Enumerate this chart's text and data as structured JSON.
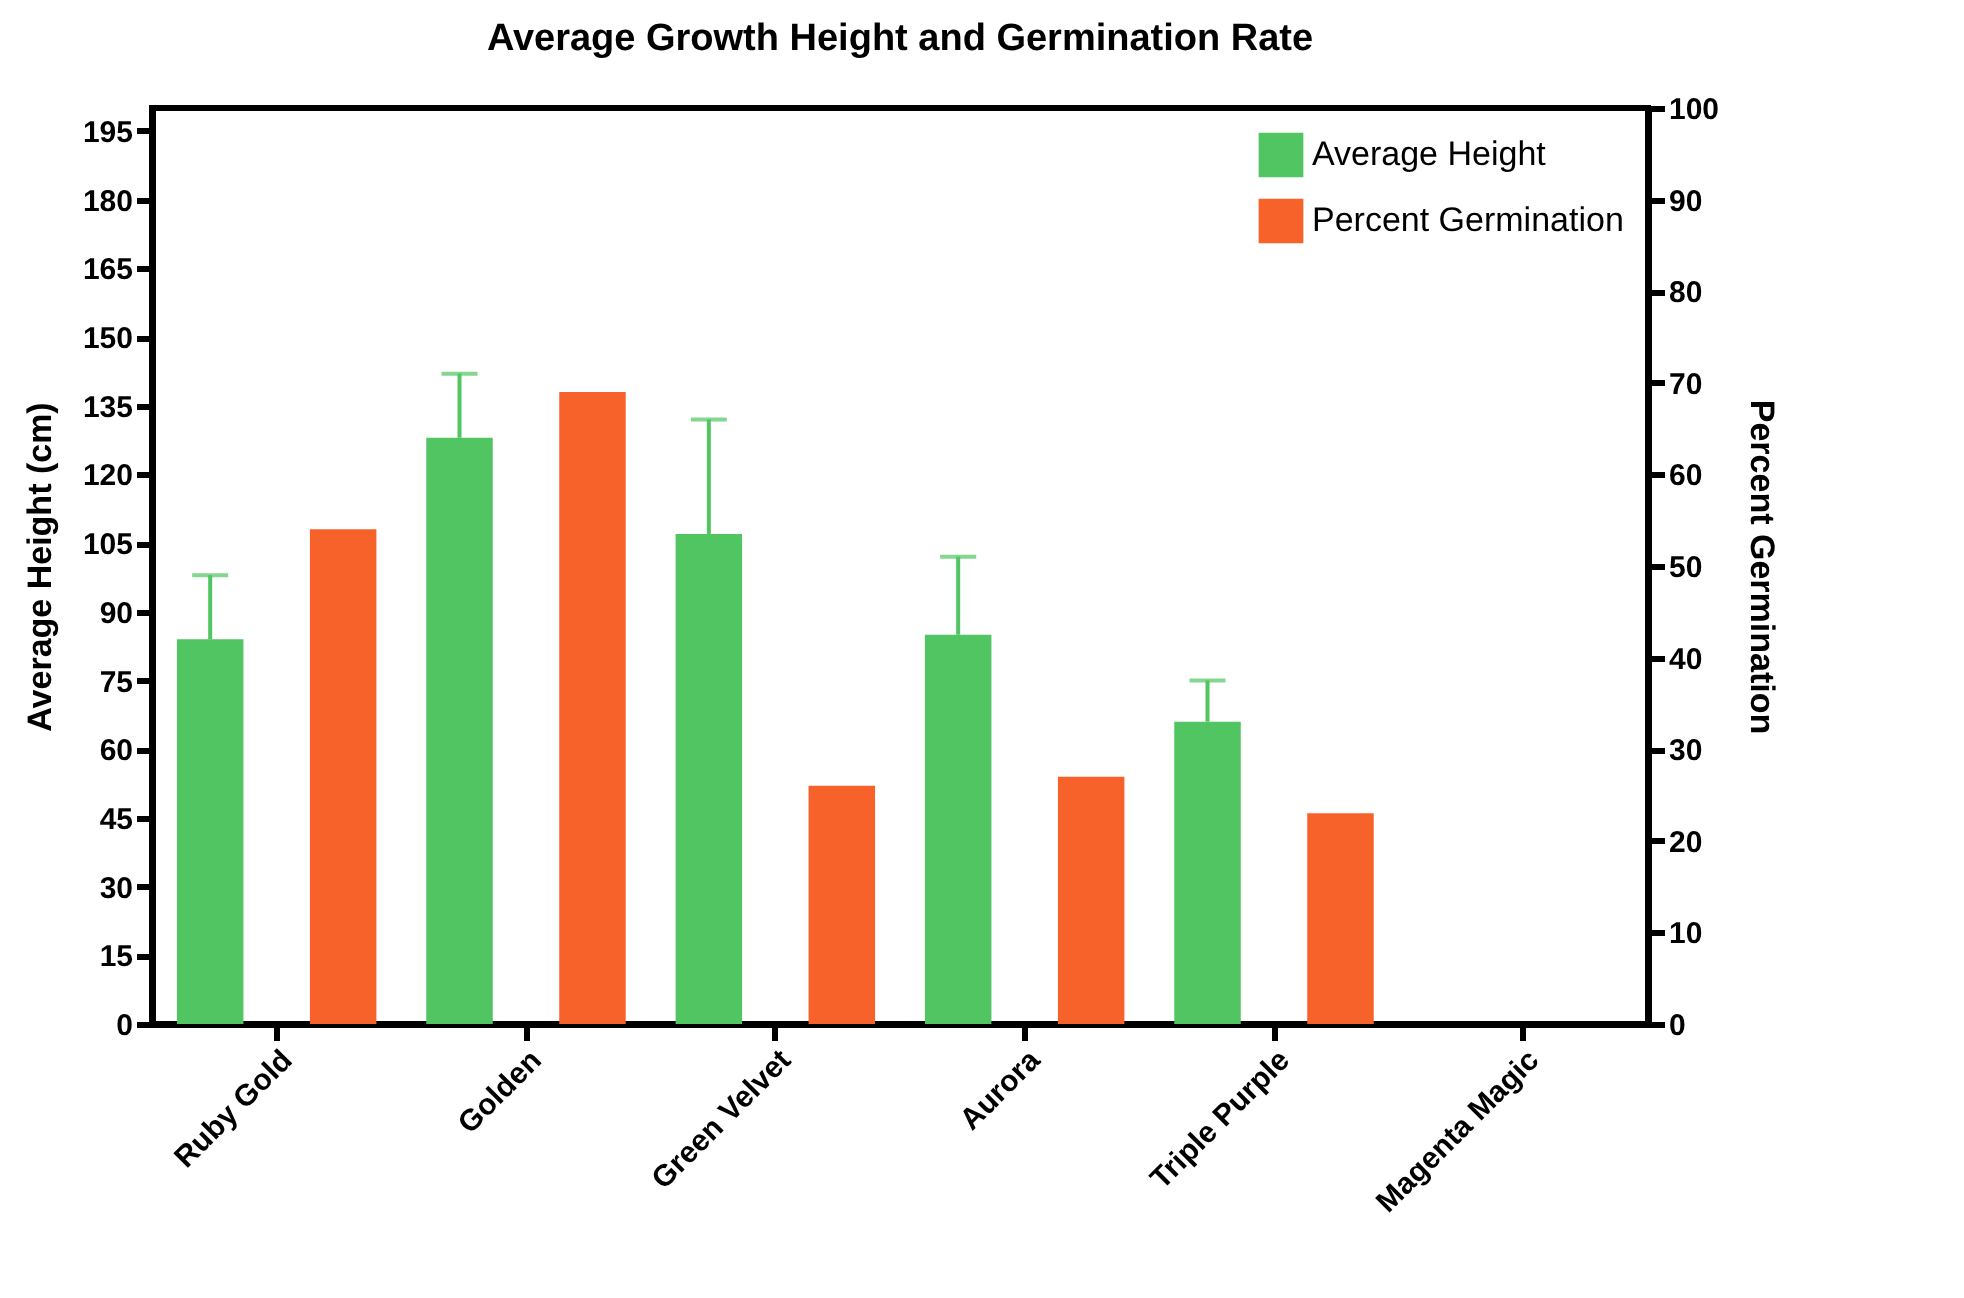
{
  "chart_data": {
    "type": "bar",
    "title": "Average Growth Height and Germination Rate",
    "ylabel": "Average Height (cm)",
    "y2label": "Percent Germination",
    "categories": [
      "Ruby Gold",
      "Golden",
      "Green Velvet",
      "Aurora",
      "Triple Purple",
      "Magenta Magic"
    ],
    "series": [
      {
        "name": "Average Height",
        "color": "#51c562",
        "values": [
          84,
          128,
          107,
          85,
          66,
          null
        ],
        "errors": [
          [
            84,
            98
          ],
          [
            128,
            142
          ],
          [
            107,
            132
          ],
          [
            85,
            102
          ],
          [
            66,
            75
          ],
          null
        ]
      },
      {
        "name": "Percent Germination",
        "color": "#f7622b",
        "axis": "y2",
        "values": [
          54,
          69,
          26,
          27,
          23,
          null
        ]
      }
    ],
    "ylim": [
      0,
      200
    ],
    "yticks": [
      0,
      15,
      30,
      45,
      60,
      75,
      90,
      105,
      120,
      135,
      150,
      165,
      180,
      195
    ],
    "y2lim": [
      0,
      100
    ],
    "y2ticks": [
      0,
      10,
      20,
      30,
      40,
      50,
      60,
      70,
      80,
      90,
      100
    ],
    "grid": false,
    "legend": "top right"
  }
}
